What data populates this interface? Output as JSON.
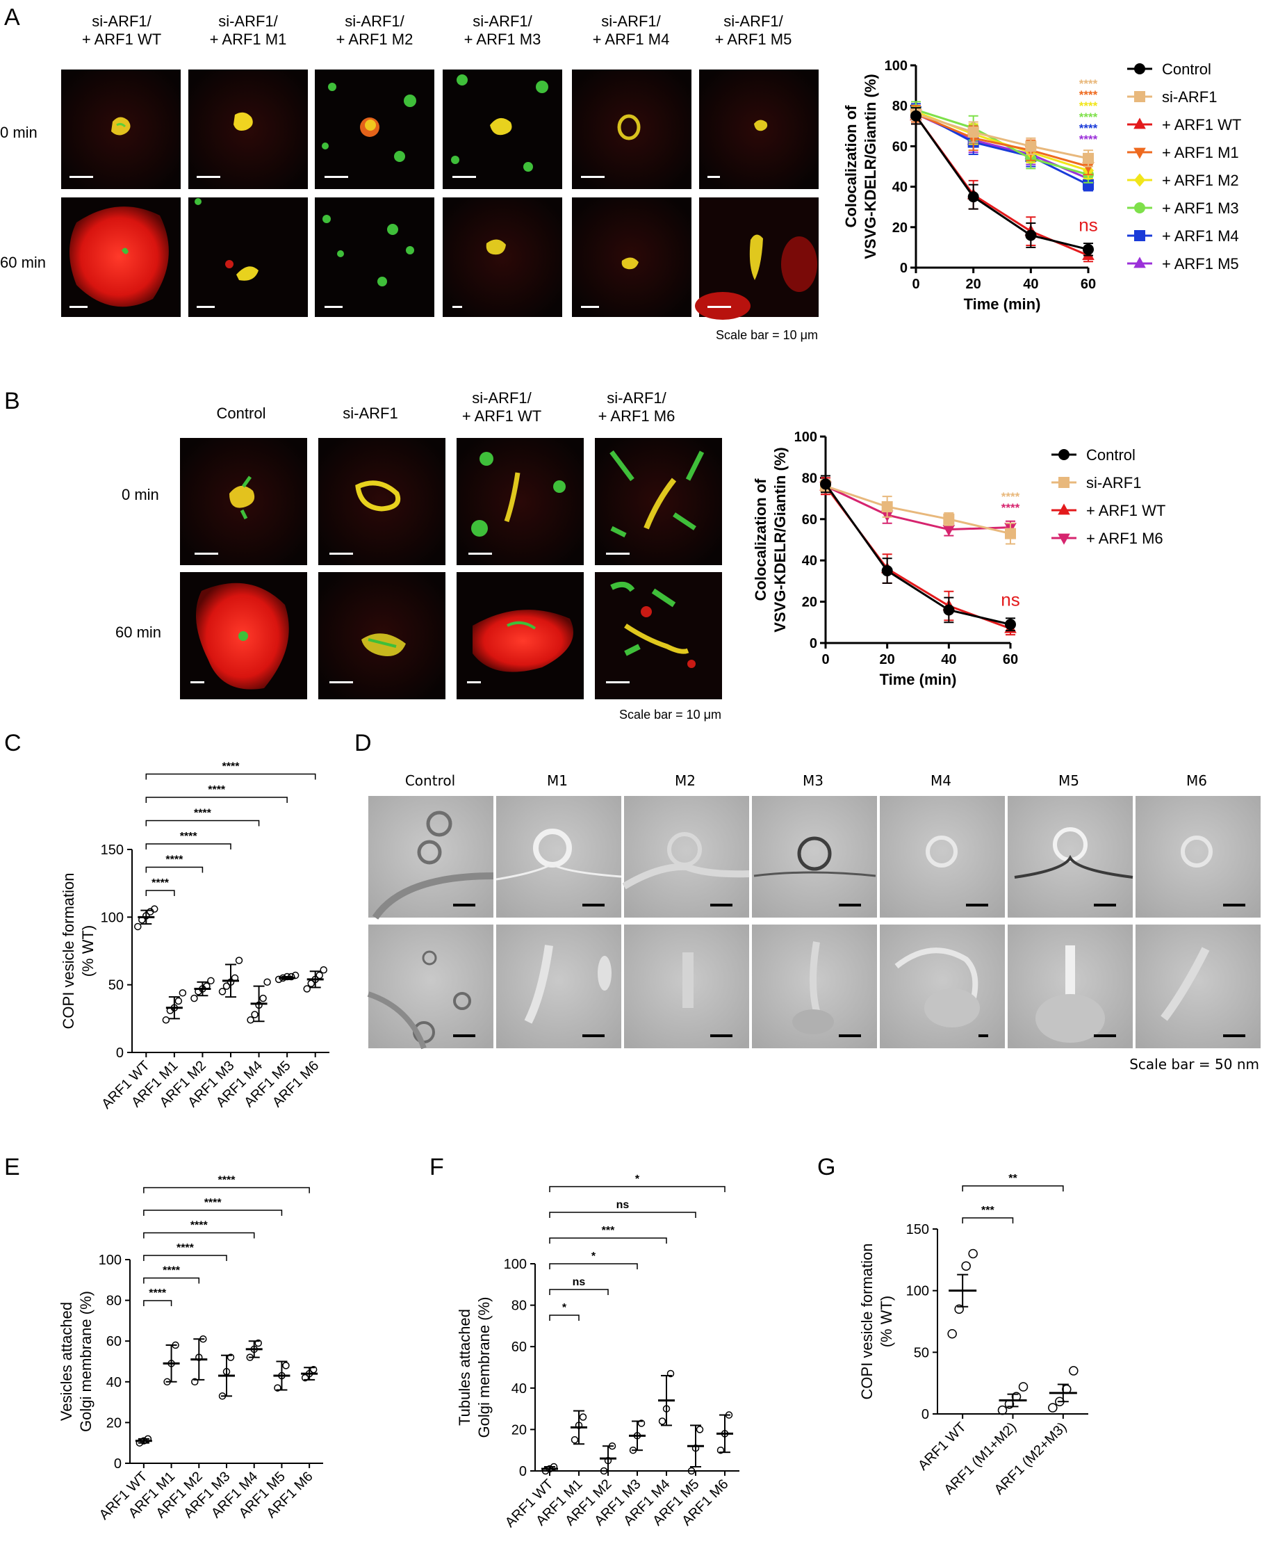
{
  "panel_letters": [
    "A",
    "B",
    "C",
    "D",
    "E",
    "F",
    "G"
  ],
  "colors": {
    "control": "#000000",
    "si_arf1": "#e8b87c",
    "wt": "#e31a1c",
    "m1": "#ee6a1f",
    "m2": "#f1e51a",
    "m3": "#7ee04a",
    "m4": "#1a3bd8",
    "m5": "#9b30d9",
    "m6": "#d6246e",
    "ns_red": "#e31a1c",
    "micro_bg": "#050303",
    "em_bg": "#b8b8b8"
  },
  "panelA": {
    "columns": [
      [
        "si-ARF1/",
        "+ ARF1 WT"
      ],
      [
        "si-ARF1/",
        "+ ARF1 M1"
      ],
      [
        "si-ARF1/",
        "+ ARF1 M2"
      ],
      [
        "si-ARF1/",
        "+ ARF1 M3"
      ],
      [
        "si-ARF1/",
        "+ ARF1 M4"
      ],
      [
        "si-ARF1/",
        "+ ARF1 M5"
      ]
    ],
    "rows": [
      "0 min",
      "60 min"
    ],
    "scale": "Scale bar = 10 μm"
  },
  "panelB": {
    "columns": [
      [
        "Control"
      ],
      [
        "si-ARF1"
      ],
      [
        "si-ARF1/",
        "+ ARF1 WT"
      ],
      [
        "si-ARF1/",
        "+ ARF1 M6"
      ]
    ],
    "rows": [
      "0 min",
      "60 min"
    ],
    "scale": "Scale bar = 10 μm"
  },
  "panelD": {
    "columns": [
      "Control",
      "M1",
      "M2",
      "M3",
      "M4",
      "M5",
      "M6"
    ],
    "scale": "Scale bar = 50 nm"
  },
  "chart_data": [
    {
      "panel": "A",
      "type": "line",
      "xlabel": "Time (min)",
      "ylabel": [
        "Colocalization of",
        "VSVG-KDELR/Giantin (%)"
      ],
      "x": [
        0,
        20,
        40,
        60
      ],
      "xlim": [
        0,
        60
      ],
      "ylim": [
        0,
        100
      ],
      "yticks": [
        0,
        20,
        40,
        60,
        80,
        100
      ],
      "xticks": [
        0,
        20,
        40,
        60
      ],
      "legend": "right",
      "series": [
        {
          "name": "Control",
          "marker": "circle",
          "color": "#000000",
          "values": [
            75,
            35,
            16,
            9
          ],
          "err": [
            4,
            6,
            6,
            3
          ]
        },
        {
          "name": "si-ARF1",
          "marker": "square",
          "color": "#e8b87c",
          "values": [
            76,
            67,
            60,
            54
          ],
          "err": [
            3,
            5,
            4,
            4
          ]
        },
        {
          "name": "+ ARF1 WT",
          "marker": "triangle-up",
          "color": "#e31a1c",
          "values": [
            75,
            36,
            18,
            6
          ],
          "err": [
            4,
            7,
            7,
            3
          ]
        },
        {
          "name": "+ ARF1 M1",
          "marker": "triangle-down",
          "color": "#ee6a1f",
          "values": [
            76,
            64,
            58,
            50
          ],
          "err": [
            4,
            6,
            5,
            4
          ]
        },
        {
          "name": "+ ARF1 M2",
          "marker": "diamond",
          "color": "#f1e51a",
          "values": [
            77,
            66,
            57,
            48
          ],
          "err": [
            3,
            5,
            5,
            4
          ]
        },
        {
          "name": "+ ARF1 M3",
          "marker": "circle",
          "color": "#7ee04a",
          "values": [
            78,
            69,
            54,
            46
          ],
          "err": [
            4,
            6,
            5,
            4
          ]
        },
        {
          "name": "+ ARF1 M4",
          "marker": "square",
          "color": "#1a3bd8",
          "values": [
            77,
            62,
            55,
            41
          ],
          "err": [
            4,
            6,
            5,
            3
          ]
        },
        {
          "name": "+ ARF1 M5",
          "marker": "triangle-up",
          "color": "#9b30d9",
          "values": [
            76,
            63,
            56,
            44
          ],
          "err": [
            4,
            6,
            5,
            3
          ]
        }
      ],
      "annotations": {
        "stars": "****",
        "ns": "ns"
      }
    },
    {
      "panel": "B",
      "type": "line",
      "xlabel": "Time (min)",
      "ylabel": [
        "Colocalization of",
        "VSVG-KDELR/Giantin (%)"
      ],
      "x": [
        0,
        20,
        40,
        60
      ],
      "xlim": [
        0,
        60
      ],
      "ylim": [
        0,
        100
      ],
      "yticks": [
        0,
        20,
        40,
        60,
        80,
        100
      ],
      "xticks": [
        0,
        20,
        40,
        60
      ],
      "legend": "right",
      "series": [
        {
          "name": "Control",
          "marker": "circle",
          "color": "#000000",
          "values": [
            77,
            35,
            16,
            9
          ],
          "err": [
            4,
            6,
            6,
            3
          ]
        },
        {
          "name": "si-ARF1",
          "marker": "square",
          "color": "#e8b87c",
          "values": [
            76,
            66,
            60,
            53
          ],
          "err": [
            3,
            5,
            3,
            5
          ]
        },
        {
          "name": "+ ARF1 WT",
          "marker": "triangle-up",
          "color": "#e31a1c",
          "values": [
            76,
            36,
            18,
            7
          ],
          "err": [
            4,
            7,
            7,
            3
          ]
        },
        {
          "name": "+ ARF1 M6",
          "marker": "triangle-down",
          "color": "#d6246e",
          "values": [
            76,
            62,
            55,
            56
          ],
          "err": [
            4,
            4,
            3,
            3
          ]
        }
      ],
      "annotations": {
        "stars": "****",
        "ns": "ns"
      }
    },
    {
      "panel": "C",
      "type": "scatter",
      "ylabel": [
        "COPI vesicle formation",
        "(% WT)"
      ],
      "categories": [
        "ARF1 WT",
        "ARF1 M1",
        "ARF1 M2",
        "ARF1 M3",
        "ARF1 M4",
        "ARF1 M5",
        "ARF1 M6"
      ],
      "ylim": [
        0,
        150
      ],
      "yticks": [
        0,
        50,
        100,
        150
      ],
      "points": [
        [
          93,
          98,
          101,
          104,
          106
        ],
        [
          24,
          31,
          33,
          38,
          44
        ],
        [
          40,
          45,
          47,
          49,
          53
        ],
        [
          45,
          49,
          52,
          55,
          68
        ],
        [
          24,
          28,
          35,
          40,
          52
        ],
        [
          54,
          55,
          56,
          56,
          57
        ],
        [
          47,
          51,
          54,
          57,
          61
        ]
      ],
      "mean": [
        100,
        33,
        47,
        53,
        36,
        55,
        54
      ],
      "sd": [
        5,
        8,
        5,
        12,
        13,
        1,
        6
      ],
      "sig": [
        "****",
        "****",
        "****",
        "****",
        "****",
        "****"
      ]
    },
    {
      "panel": "E",
      "type": "scatter",
      "ylabel": [
        "Vesicles attached",
        "Golgi membrane (%)"
      ],
      "categories": [
        "ARF1 WT",
        "ARF1 M1",
        "ARF1 M2",
        "ARF1 M3",
        "ARF1 M4",
        "ARF1 M5",
        "ARF1 M6"
      ],
      "ylim": [
        0,
        100
      ],
      "yticks": [
        0,
        20,
        40,
        60,
        80,
        100
      ],
      "points": [
        [
          10,
          11,
          12
        ],
        [
          40,
          49,
          58
        ],
        [
          40,
          52,
          61
        ],
        [
          33,
          45,
          52
        ],
        [
          52,
          56,
          59
        ],
        [
          37,
          43,
          48
        ],
        [
          42,
          44,
          46
        ]
      ],
      "mean": [
        11,
        49,
        51,
        43,
        56,
        43,
        44
      ],
      "sd": [
        1,
        9,
        10,
        10,
        4,
        7,
        3
      ],
      "sig": [
        "****",
        "****",
        "****",
        "****",
        "****",
        "****"
      ]
    },
    {
      "panel": "F",
      "type": "scatter",
      "ylabel": [
        "Tubules attached",
        "Golgi membrane (%)"
      ],
      "categories": [
        "ARF1 WT",
        "ARF1 M1",
        "ARF1 M2",
        "ARF1 M3",
        "ARF1 M4",
        "ARF1 M5",
        "ARF1 M6"
      ],
      "ylim": [
        0,
        100
      ],
      "yticks": [
        0,
        20,
        40,
        60,
        80,
        100
      ],
      "points": [
        [
          0,
          1,
          2
        ],
        [
          15,
          22,
          26
        ],
        [
          0,
          5,
          12
        ],
        [
          10,
          17,
          23
        ],
        [
          24,
          30,
          47
        ],
        [
          0,
          11,
          20
        ],
        [
          10,
          18,
          27
        ]
      ],
      "mean": [
        1,
        21,
        6,
        17,
        34,
        12,
        18
      ],
      "sd": [
        1,
        8,
        6,
        7,
        12,
        10,
        9
      ],
      "sig": [
        "*",
        "ns",
        "*",
        "***",
        "ns",
        "*"
      ]
    },
    {
      "panel": "G",
      "type": "scatter",
      "ylabel": [
        "COPI vesicle formation",
        "(% WT)"
      ],
      "categories": [
        "ARF1 WT",
        "ARF1 (M1+M2)",
        "ARF1 (M2+M3)"
      ],
      "ylim": [
        0,
        150
      ],
      "yticks": [
        0,
        50,
        100,
        150
      ],
      "points": [
        [
          65,
          85,
          120,
          130
        ],
        [
          3,
          8,
          14,
          22
        ],
        [
          5,
          10,
          20,
          35
        ]
      ],
      "mean": [
        100,
        11,
        17
      ],
      "sem": [
        13,
        5,
        7
      ],
      "sig": [
        "***",
        "**"
      ]
    }
  ]
}
